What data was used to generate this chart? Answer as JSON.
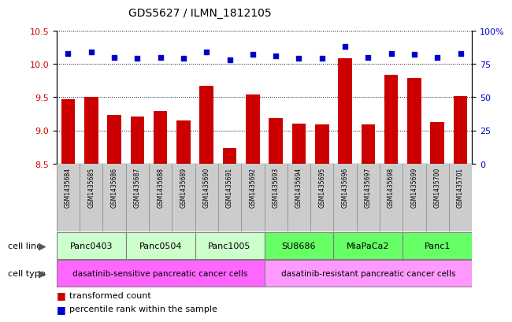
{
  "title": "GDS5627 / ILMN_1812105",
  "samples": [
    "GSM1435684",
    "GSM1435685",
    "GSM1435686",
    "GSM1435687",
    "GSM1435688",
    "GSM1435689",
    "GSM1435690",
    "GSM1435691",
    "GSM1435692",
    "GSM1435693",
    "GSM1435694",
    "GSM1435695",
    "GSM1435696",
    "GSM1435697",
    "GSM1435698",
    "GSM1435699",
    "GSM1435700",
    "GSM1435701"
  ],
  "bar_values": [
    9.47,
    9.5,
    9.23,
    9.21,
    9.29,
    9.15,
    9.67,
    8.74,
    9.54,
    9.18,
    9.1,
    9.09,
    10.08,
    9.09,
    9.84,
    9.79,
    9.12,
    9.51
  ],
  "dot_values": [
    83,
    84,
    80,
    79,
    80,
    79,
    84,
    78,
    82,
    81,
    79,
    79,
    88,
    80,
    83,
    82,
    80,
    83
  ],
  "ylim_left": [
    8.5,
    10.5
  ],
  "ylim_right": [
    0,
    100
  ],
  "yticks_left": [
    8.5,
    9.0,
    9.5,
    10.0,
    10.5
  ],
  "yticks_right": [
    0,
    25,
    50,
    75,
    100
  ],
  "bar_color": "#cc0000",
  "dot_color": "#0000cc",
  "xtick_bg_color": "#cccccc",
  "cell_lines": [
    {
      "name": "Panc0403",
      "start": 0,
      "end": 2,
      "color": "#ccffcc"
    },
    {
      "name": "Panc0504",
      "start": 3,
      "end": 5,
      "color": "#ccffcc"
    },
    {
      "name": "Panc1005",
      "start": 6,
      "end": 8,
      "color": "#ccffcc"
    },
    {
      "name": "SU8686",
      "start": 9,
      "end": 11,
      "color": "#66ff66"
    },
    {
      "name": "MiaPaCa2",
      "start": 12,
      "end": 14,
      "color": "#66ff66"
    },
    {
      "name": "Panc1",
      "start": 15,
      "end": 17,
      "color": "#66ff66"
    }
  ],
  "cell_types": [
    {
      "name": "dasatinib-sensitive pancreatic cancer cells",
      "start": 0,
      "end": 8,
      "color": "#ff66ff"
    },
    {
      "name": "dasatinib-resistant pancreatic cancer cells",
      "start": 9,
      "end": 17,
      "color": "#ff99ff"
    }
  ],
  "legend_bar_label": "transformed count",
  "legend_dot_label": "percentile rank within the sample",
  "cell_line_label": "cell line",
  "cell_type_label": "cell type"
}
